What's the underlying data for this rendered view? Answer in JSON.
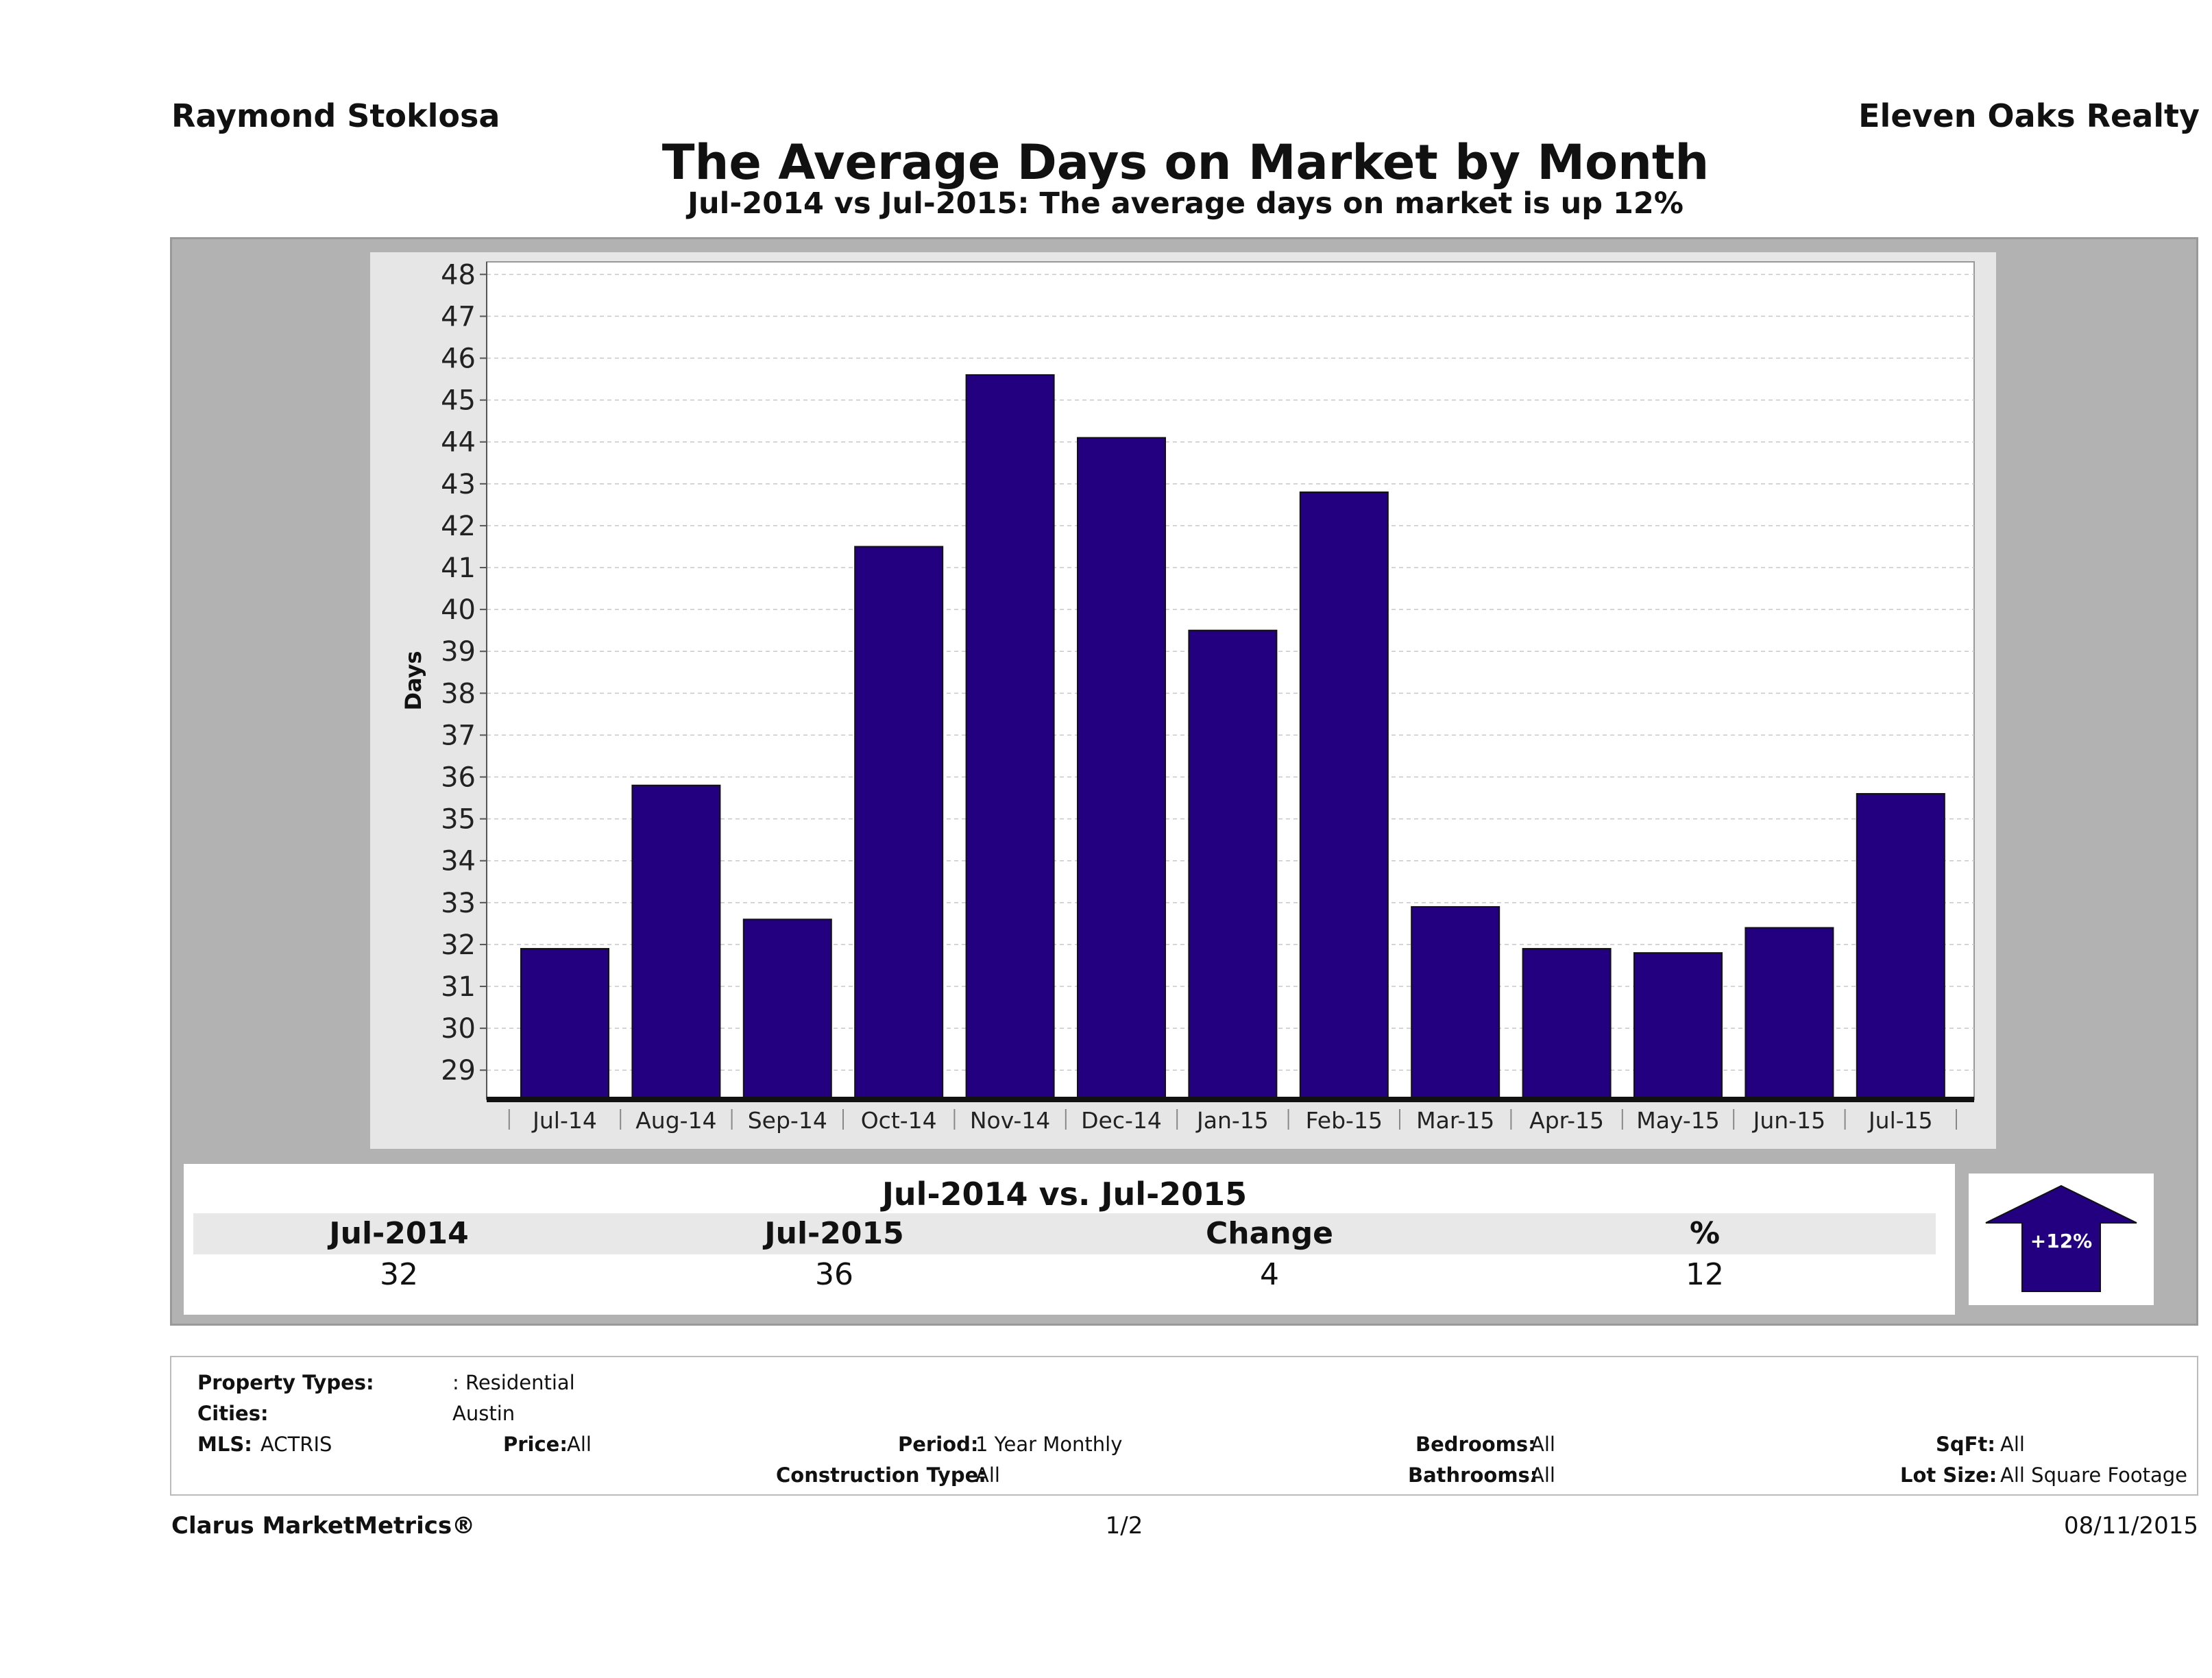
{
  "header": {
    "agent": "Raymond Stoklosa",
    "brokerage": "Eleven Oaks Realty",
    "title": "The Average Days on Market by Month",
    "subtitle": "Jul-2014 vs Jul-2015: The average days on market is up 12%"
  },
  "chart_data": {
    "type": "bar",
    "title": "The Average Days on Market by Month",
    "subtitle": "Jul-2014 vs Jul-2015: The average days on market is up 12%",
    "xlabel": "",
    "ylabel": "Days",
    "categories": [
      "Jul-14",
      "Aug-14",
      "Sep-14",
      "Oct-14",
      "Nov-14",
      "Dec-14",
      "Jan-15",
      "Feb-15",
      "Mar-15",
      "Apr-15",
      "May-15",
      "Jun-15",
      "Jul-15"
    ],
    "values": [
      31.9,
      35.8,
      32.6,
      41.5,
      45.6,
      44.1,
      39.5,
      42.8,
      32.9,
      31.9,
      31.8,
      32.4,
      35.6
    ],
    "ylim": [
      28.3,
      48.3
    ],
    "yticks": [
      29,
      30,
      31,
      32,
      33,
      34,
      35,
      36,
      37,
      38,
      39,
      40,
      41,
      42,
      43,
      44,
      45,
      46,
      47,
      48
    ],
    "grid": true,
    "bar_color": "#220080"
  },
  "summary": {
    "title": "Jul-2014 vs. Jul-2015",
    "headers": [
      "Jul-2014",
      "Jul-2015",
      "Change",
      "%"
    ],
    "values": [
      "32",
      "36",
      "4",
      "12"
    ],
    "badge": "+12%",
    "arrow_color": "#220080"
  },
  "filters": {
    "property_types_label": "Property Types:",
    "property_types_value": ": Residential",
    "cities_label": "Cities:",
    "cities_value": "Austin",
    "mls_label": "MLS:",
    "mls_value": "ACTRIS",
    "price_label": "Price:",
    "price_value": "All",
    "period_label": "Period:",
    "period_value": "1 Year Monthly",
    "construction_label": "Construction Type:",
    "construction_value": "All",
    "bedrooms_label": "Bedrooms:",
    "bedrooms_value": "All",
    "bathrooms_label": "Bathrooms:",
    "bathrooms_value": "All",
    "sqft_label": "SqFt:",
    "sqft_value": "All",
    "lotsize_label": "Lot Size:",
    "lotsize_value": "All Square Footage"
  },
  "footer": {
    "brand": "Clarus MarketMetrics®",
    "page": "1/2",
    "date": "08/11/2015"
  }
}
